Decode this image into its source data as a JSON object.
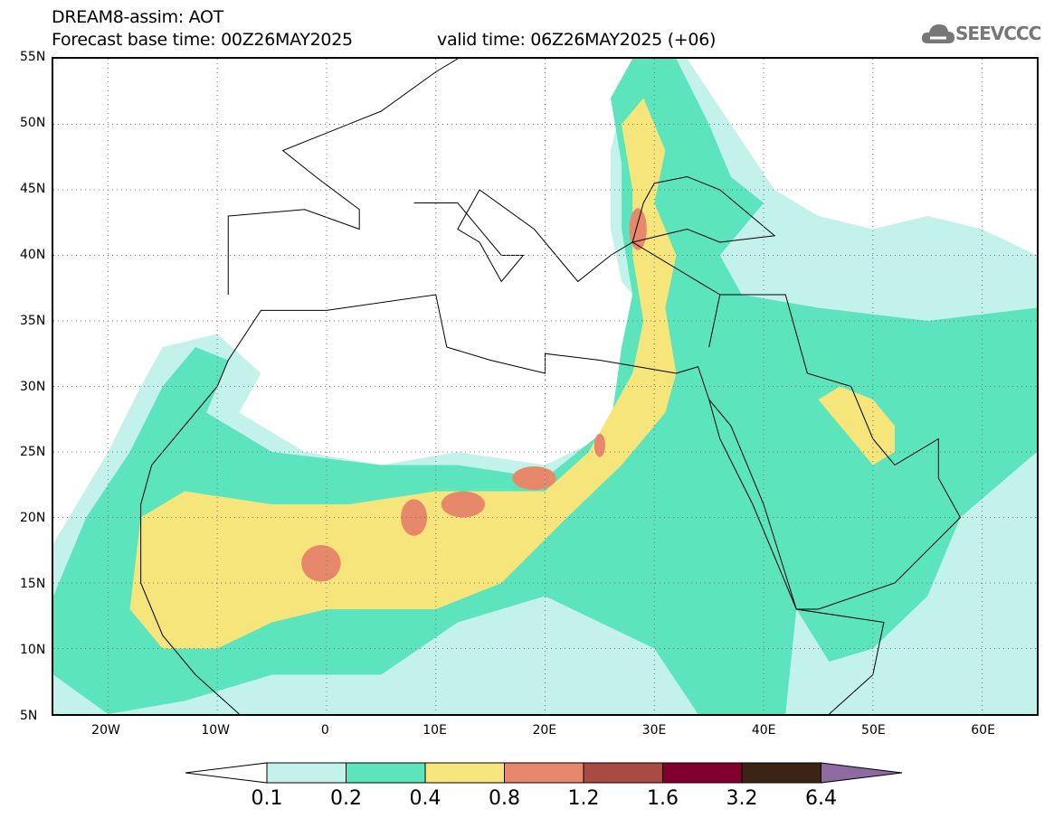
{
  "header": {
    "title": "DREAM8-assim: AOT",
    "base_time": "Forecast base time: 00Z26MAY2025",
    "valid_time": "valid time: 06Z26MAY2025 (+06)"
  },
  "logo": {
    "text": "SEEVCCC"
  },
  "map": {
    "lon_range": [
      -25,
      65
    ],
    "lat_range": [
      5,
      55
    ],
    "lat_labels": [
      "55N",
      "50N",
      "45N",
      "40N",
      "35N",
      "30N",
      "25N",
      "20N",
      "15N",
      "10N",
      "5N"
    ],
    "lon_labels": [
      "20W",
      "10W",
      "0",
      "10E",
      "20E",
      "30E",
      "40E",
      "50E",
      "60E"
    ]
  },
  "colorbar": {
    "labels": [
      "0.1",
      "0.2",
      "0.4",
      "0.8",
      "1.2",
      "1.6",
      "3.2",
      "6.4"
    ],
    "colors": [
      "#c3f2ea",
      "#5ce5bd",
      "#f6e57a",
      "#e8886b",
      "#a94b42",
      "#810030",
      "#3b2415",
      "#8d6aa0"
    ]
  }
}
